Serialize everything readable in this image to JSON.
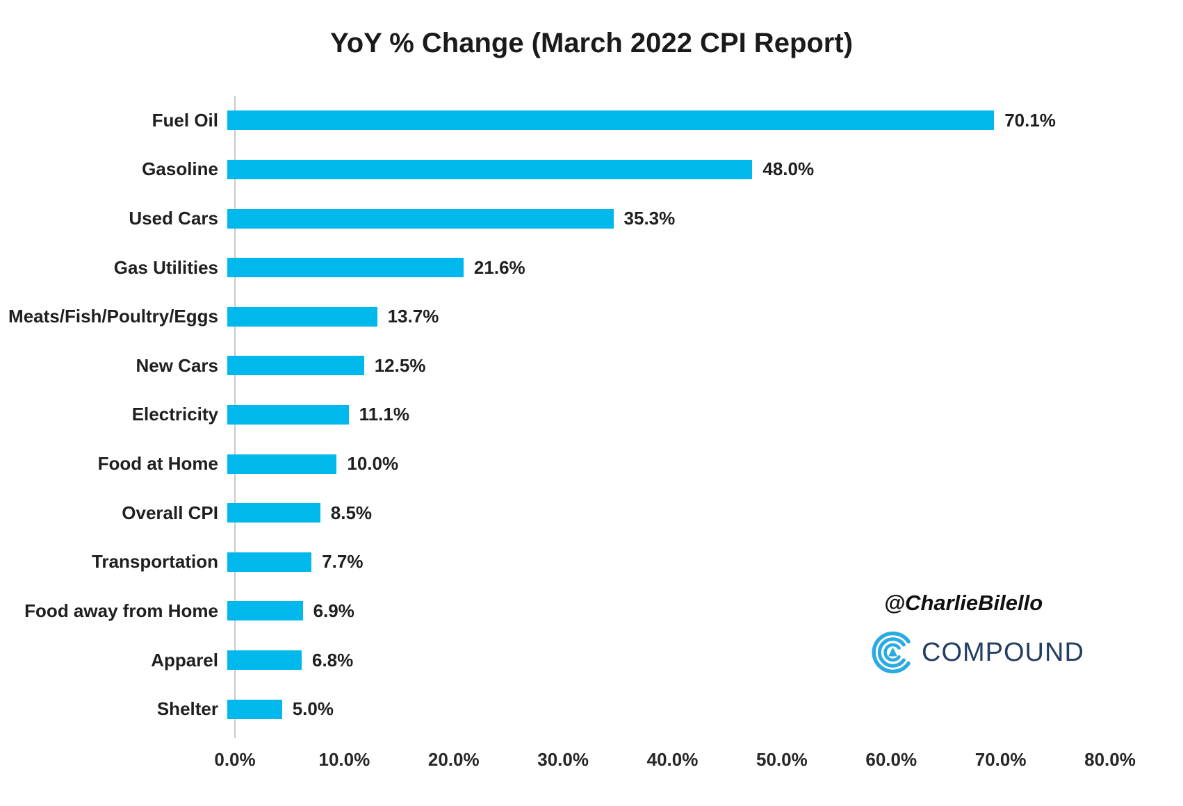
{
  "chart_data": {
    "type": "bar",
    "orientation": "horizontal",
    "title": "YoY % Change (March 2022 CPI Report)",
    "categories": [
      "Fuel Oil",
      "Gasoline",
      "Used Cars",
      "Gas Utilities",
      "Meats/Fish/Poultry/Eggs",
      "New Cars",
      "Electricity",
      "Food at Home",
      "Overall CPI",
      "Transportation",
      "Food away from Home",
      "Apparel",
      "Shelter"
    ],
    "values": [
      70.1,
      48.0,
      35.3,
      21.6,
      13.7,
      12.5,
      11.1,
      10.0,
      8.5,
      7.7,
      6.9,
      6.8,
      5.0
    ],
    "value_labels": [
      "70.1%",
      "48.0%",
      "35.3%",
      "21.6%",
      "13.7%",
      "12.5%",
      "11.1%",
      "10.0%",
      "8.5%",
      "7.7%",
      "6.9%",
      "6.8%",
      "5.0%"
    ],
    "xlim": [
      0,
      80
    ],
    "x_tick_labels": [
      "0.0%",
      "10.0%",
      "20.0%",
      "30.0%",
      "40.0%",
      "50.0%",
      "60.0%",
      "70.0%",
      "80.0%"
    ],
    "grid": false,
    "legend": false,
    "bar_color": "#00b8ec",
    "axis_line_color": "#c9c9c9",
    "text_color": "#1f1f1f"
  },
  "watermark": {
    "handle": "@CharlieBilello"
  },
  "logo": {
    "text": "COMPOUND",
    "icon": "compound-arcs-icon",
    "text_color": "#243e63",
    "icon_color": "#29abe2"
  }
}
